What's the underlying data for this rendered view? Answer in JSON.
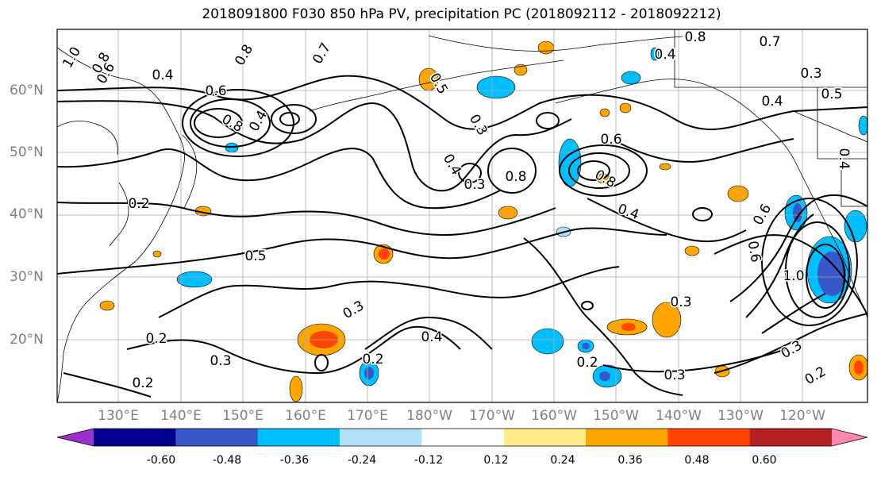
{
  "title": "2018091800 F030 850 hPa PV, precipitation PC (2018092112 - 2018092212)",
  "lat_labels": [
    "60°N",
    "50°N",
    "40°N",
    "30°N",
    "20°N"
  ],
  "lon_labels": [
    "130°E",
    "140°E",
    "150°E",
    "160°E",
    "170°E",
    "180°W",
    "170°W",
    "160°W",
    "150°W",
    "140°W",
    "130°W",
    "120°W"
  ],
  "contour_labels": [
    "1.0",
    "0.8",
    "0.6",
    "0.4",
    "0.7",
    "0.8",
    "0.6",
    "0.8",
    "0.4",
    "0.5",
    "0.5",
    "0.4",
    "0.8",
    "0.3",
    "0.8",
    "0.6",
    "0.3",
    "0.4",
    "0.6",
    "0.2",
    "0.5",
    "0.3",
    "0.2",
    "0.3",
    "0.4",
    "0.2",
    "0.3",
    "0.2",
    "0.3",
    "0.2",
    "0.6",
    "1.0",
    "0.3",
    "0.2",
    "0.4",
    "0.7",
    "0.3",
    "0.8",
    "0.4",
    "0.4"
  ],
  "colorbar": {
    "ticks": [
      "-0.60",
      "-0.48",
      "-0.36",
      "-0.24",
      "-0.12",
      "0.12",
      "0.24",
      "0.36",
      "0.48",
      "0.60"
    ],
    "colors": [
      "#9932cc",
      "#00008b",
      "#3658c8",
      "#00bfff",
      "#b0e0fa",
      "#ffffff",
      "#ffec8b",
      "#ffa500",
      "#ff4500",
      "#b22222",
      "#ff88b0"
    ]
  }
}
